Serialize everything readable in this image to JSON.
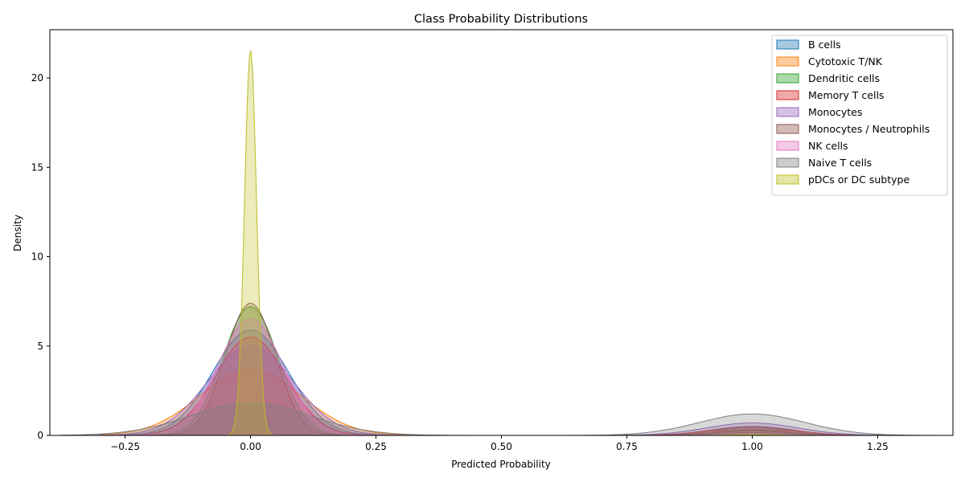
{
  "chart_data": {
    "type": "area",
    "title": "Class Probability Distributions",
    "xlabel": "Predicted Probability",
    "ylabel": "Density",
    "xlim": [
      -0.4,
      1.4
    ],
    "ylim": [
      0,
      22.7
    ],
    "xticks": [
      -0.25,
      0.0,
      0.25,
      0.5,
      0.75,
      1.0,
      1.25
    ],
    "xtick_labels": [
      "−0.25",
      "0.00",
      "0.25",
      "0.50",
      "0.75",
      "1.00",
      "1.25"
    ],
    "yticks": [
      0,
      5,
      10,
      15,
      20
    ],
    "ytick_labels": [
      "0",
      "5",
      "10",
      "15",
      "20"
    ],
    "grid": false,
    "legend_position": "top-right",
    "series": [
      {
        "name": "B cells",
        "color": "#1f77b4",
        "components": [
          {
            "mu": 0.0,
            "sigma": 0.075,
            "peak": 5.9
          },
          {
            "mu": 1.0,
            "sigma": 0.08,
            "peak": 0.45
          }
        ],
        "support": [
          -0.28,
          1.28
        ]
      },
      {
        "name": "Cytotoxic T/NK",
        "color": "#ff7f0e",
        "components": [
          {
            "mu": 0.0,
            "sigma": 0.1,
            "peak": 3.7
          },
          {
            "mu": 1.0,
            "sigma": 0.09,
            "peak": 0.35
          }
        ],
        "support": [
          -0.3,
          1.3
        ]
      },
      {
        "name": "Dendritic cells",
        "color": "#2ca02c",
        "components": [
          {
            "mu": 0.0,
            "sigma": 0.055,
            "peak": 7.2
          },
          {
            "mu": 1.0,
            "sigma": 0.07,
            "peak": 0.15
          }
        ],
        "support": [
          -0.22,
          1.22
        ]
      },
      {
        "name": "Memory T cells",
        "color": "#d62728",
        "components": [
          {
            "mu": 0.0,
            "sigma": 0.07,
            "peak": 5.5
          },
          {
            "mu": 1.0,
            "sigma": 0.08,
            "peak": 0.5
          }
        ],
        "support": [
          -0.28,
          1.28
        ]
      },
      {
        "name": "Monocytes",
        "color": "#9467bd",
        "components": [
          {
            "mu": 0.0,
            "sigma": 0.085,
            "peak": 5.0
          },
          {
            "mu": 1.0,
            "sigma": 0.09,
            "peak": 0.7
          }
        ],
        "support": [
          -0.32,
          1.32
        ]
      },
      {
        "name": "Monocytes / Neutrophils",
        "color": "#8c564b",
        "components": [
          {
            "mu": 0.0,
            "sigma": 0.05,
            "peak": 7.4
          },
          {
            "mu": 1.0,
            "sigma": 0.07,
            "peak": 0.3
          }
        ],
        "support": [
          -0.22,
          1.22
        ]
      },
      {
        "name": "NK cells",
        "color": "#e377c2",
        "components": [
          {
            "mu": 0.0,
            "sigma": 0.065,
            "peak": 6.5
          },
          {
            "mu": 1.0,
            "sigma": 0.07,
            "peak": 0.1
          }
        ],
        "support": [
          -0.24,
          1.24
        ]
      },
      {
        "name": "Naive T cells",
        "color": "#7f7f7f",
        "components": [
          {
            "mu": 0.0,
            "sigma": 0.12,
            "peak": 1.8
          },
          {
            "mu": 1.0,
            "sigma": 0.105,
            "peak": 1.2
          }
        ],
        "support": [
          -0.38,
          1.38
        ]
      },
      {
        "name": "pDCs or DC subtype",
        "color": "#bcbd22",
        "components": [
          {
            "mu": 0.0,
            "sigma": 0.012,
            "peak": 21.6
          },
          {
            "mu": 1.0,
            "sigma": 0.05,
            "peak": 0.05
          }
        ],
        "support": [
          -0.05,
          1.15
        ]
      }
    ]
  }
}
